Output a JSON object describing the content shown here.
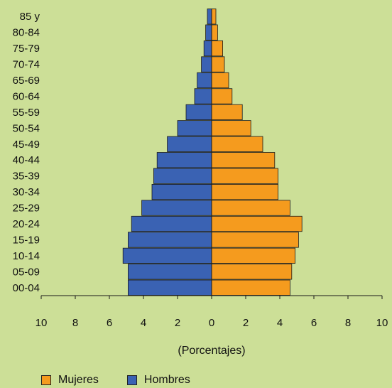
{
  "chart_data": {
    "type": "bar",
    "orientation": "horizontal-population-pyramid",
    "categories": [
      "00-04",
      "05-09",
      "10-14",
      "15-19",
      "20-24",
      "25-29",
      "30-34",
      "35-39",
      "40-44",
      "45-49",
      "50-54",
      "55-59",
      "60-64",
      "65-69",
      "70-74",
      "75-79",
      "80-84",
      "85 y"
    ],
    "series": [
      {
        "name": "Hombres",
        "color": "#3a62b3",
        "values": [
          4.9,
          4.9,
          5.2,
          4.9,
          4.7,
          4.1,
          3.5,
          3.4,
          3.2,
          2.6,
          2.0,
          1.5,
          1.0,
          0.85,
          0.6,
          0.45,
          0.35,
          0.25
        ]
      },
      {
        "name": "Mujeres",
        "color": "#f59b1e",
        "values": [
          4.6,
          4.7,
          4.9,
          5.1,
          5.3,
          4.6,
          3.9,
          3.9,
          3.7,
          3.0,
          2.3,
          1.8,
          1.2,
          1.0,
          0.75,
          0.65,
          0.35,
          0.25
        ]
      }
    ],
    "xlabel": "(Porcentajes)",
    "xlim": [
      -10,
      10
    ],
    "xticks": [
      -10,
      -8,
      -6,
      -4,
      -2,
      0,
      2,
      4,
      6,
      8,
      10
    ],
    "xtick_labels": [
      "10",
      "8",
      "6",
      "4",
      "2",
      "0",
      "2",
      "4",
      "6",
      "8",
      "10"
    ],
    "legend": [
      "Mujeres",
      "Hombres"
    ],
    "legend_position": "bottom-left",
    "grid": false
  }
}
